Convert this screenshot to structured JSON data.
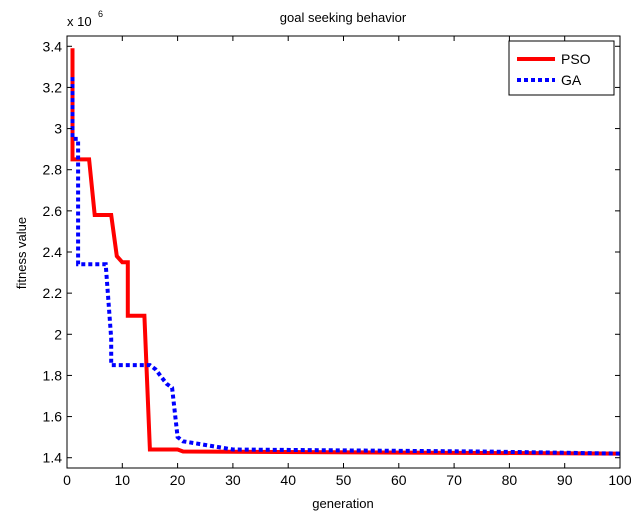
{
  "chart_data": {
    "type": "line",
    "title": "goal seeking behavior",
    "xlabel": "generation",
    "ylabel": "fitness value",
    "y_multiplier": {
      "base": "x 10",
      "exponent": "6"
    },
    "xlim": [
      0,
      100
    ],
    "ylim": [
      1.35,
      3.45
    ],
    "xticks": [
      0,
      10,
      20,
      30,
      40,
      50,
      60,
      70,
      80,
      90,
      100
    ],
    "xtick_labels": [
      "0",
      "10",
      "20",
      "30",
      "40",
      "50",
      "60",
      "70",
      "80",
      "90",
      "100"
    ],
    "yticks": [
      1.4,
      1.6,
      1.8,
      2.0,
      2.2,
      2.4,
      2.6,
      2.8,
      3.0,
      3.2,
      3.4
    ],
    "ytick_labels": [
      "1.4",
      "1.6",
      "1.8",
      "2",
      "2.2",
      "2.4",
      "2.6",
      "2.8",
      "3",
      "3.2",
      "3.4"
    ],
    "grid": false,
    "legend_position": "top-right",
    "series": [
      {
        "name": "PSO",
        "color": "#ff0000",
        "style": "solid",
        "x": [
          1,
          1,
          2,
          4,
          5,
          8,
          9,
          10,
          11,
          11,
          14,
          15,
          20,
          21,
          100
        ],
        "y": [
          3.39,
          2.85,
          2.85,
          2.85,
          2.58,
          2.58,
          2.38,
          2.35,
          2.35,
          2.09,
          2.09,
          1.44,
          1.44,
          1.43,
          1.42
        ]
      },
      {
        "name": "GA",
        "color": "#0000ff",
        "style": "dotted",
        "x": [
          1,
          1,
          2,
          2,
          7,
          8,
          8,
          15,
          16,
          18,
          19,
          20,
          21,
          30,
          75,
          100
        ],
        "y": [
          3.25,
          2.95,
          2.95,
          2.34,
          2.34,
          1.98,
          1.85,
          1.85,
          1.83,
          1.76,
          1.74,
          1.5,
          1.48,
          1.44,
          1.43,
          1.42
        ]
      }
    ]
  }
}
